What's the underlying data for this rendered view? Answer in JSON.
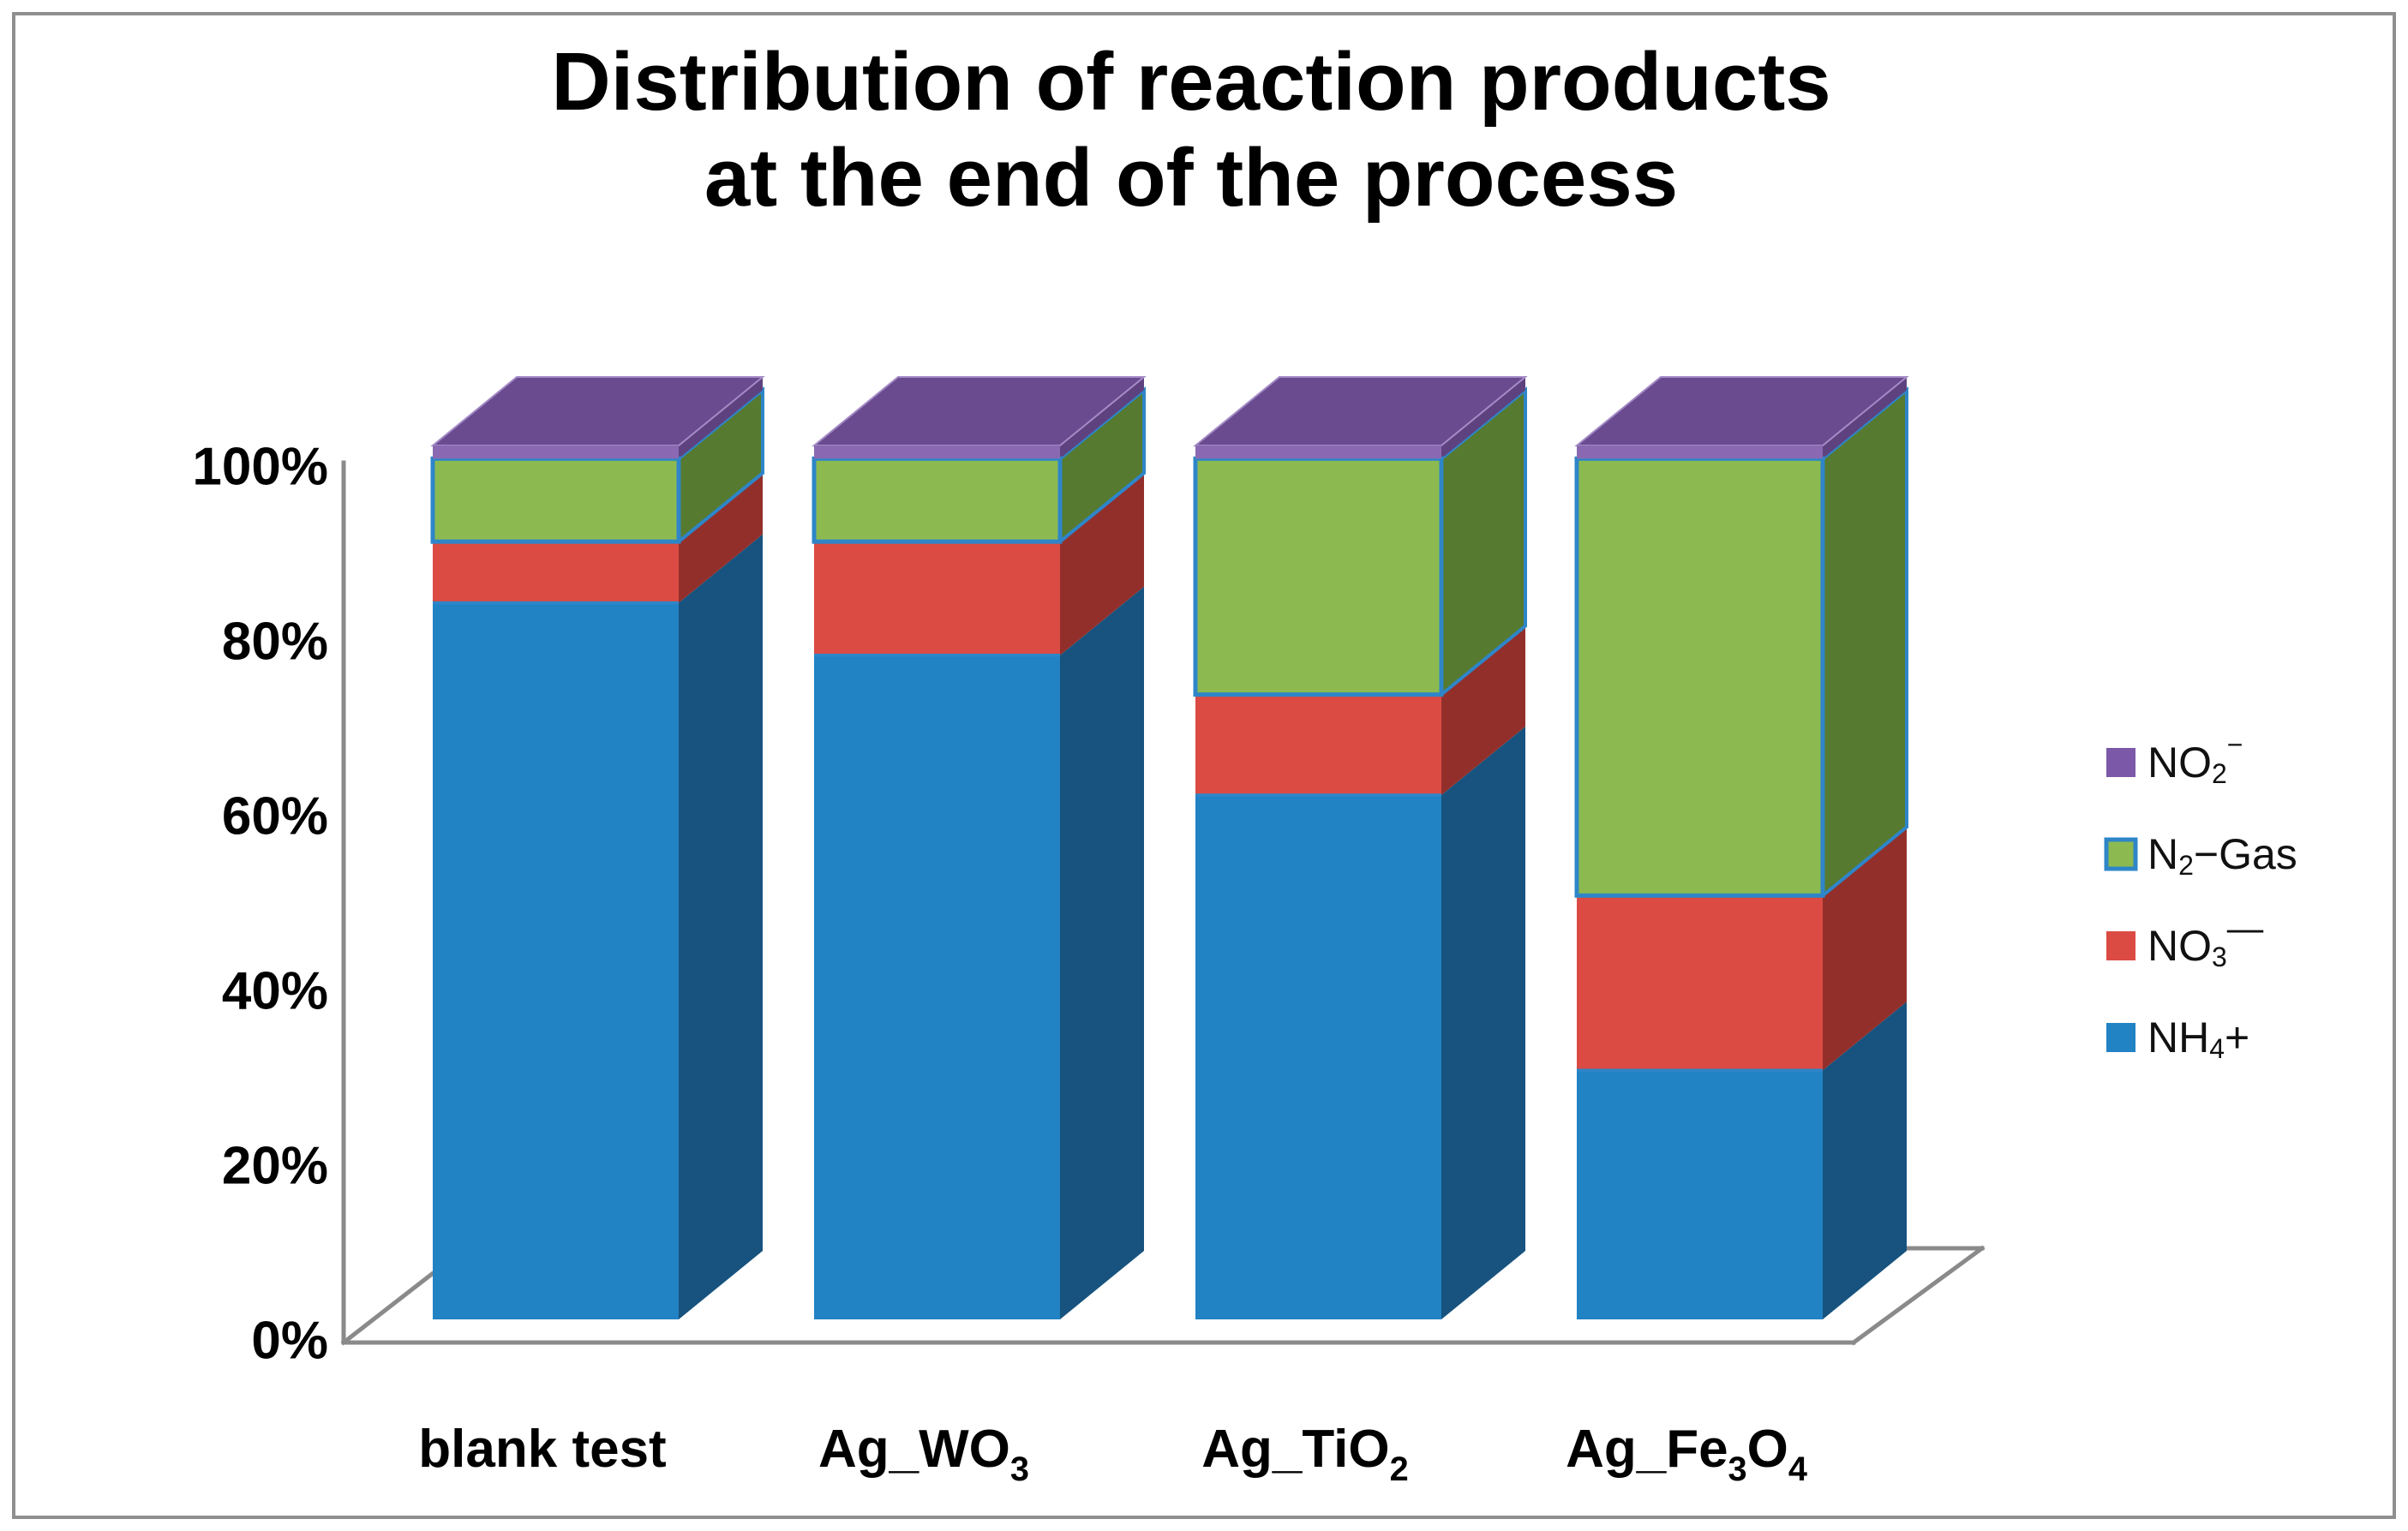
{
  "figure": {
    "background": "#FFFFFF",
    "border_color": "#8F8F8F"
  },
  "label_syntax": "~x renders next char as subscript, ^x renders next char as superscript",
  "chart_data": {
    "type": "bar",
    "stacked": true,
    "projection": "3d",
    "title_line1": "Distribution of reaction products",
    "title_line2": "at the end of the process",
    "categories": [
      "blank test",
      "Ag_WO~3",
      "Ag_TiO~2",
      "Ag_Fe~3O~4"
    ],
    "series": [
      {
        "name": "NH~4+",
        "values": [
          82,
          76,
          60,
          28.5
        ],
        "color": "#2182C4",
        "side_color": "#17537E"
      },
      {
        "name": "NO~3^—",
        "values": [
          7,
          13,
          11.5,
          20
        ],
        "color": "#DB4B43",
        "side_color": "#932F2B"
      },
      {
        "name": "N~2−Gas",
        "values": [
          9.5,
          9.5,
          27,
          50
        ],
        "color": "#8CBA51",
        "side_color": "#567A2F",
        "outline_color": "#2E86C8"
      },
      {
        "name": "NO~2^−",
        "values": [
          1.5,
          1.5,
          1.5,
          1.5
        ],
        "color": "#8A69B2",
        "side_color": "#5E4280",
        "top_color": "#6B4B90",
        "legend_color": "#7B59A8"
      }
    ],
    "y_axis": {
      "min": 0,
      "max": 100,
      "ticks": [
        "0%",
        "20%",
        "40%",
        "60%",
        "80%",
        "100%"
      ]
    },
    "ylim": [
      0,
      100
    ],
    "grid": false,
    "axis_color": "#8A8A8A",
    "segment_outline_color": "#2E86C8",
    "legend": {
      "position": "right",
      "items_top_to_bottom": [
        "NO~2^−",
        "N~2−Gas",
        "NO~3^—",
        "NH~4+"
      ]
    }
  }
}
